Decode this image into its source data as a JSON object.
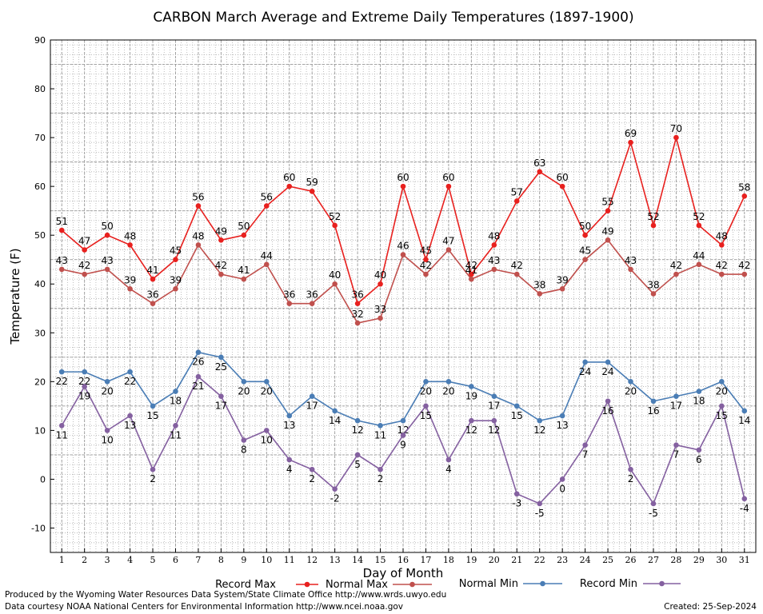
{
  "chart_data": {
    "type": "line",
    "title": "CARBON March Average and Extreme Daily Temperatures (1897-1900)",
    "xlabel": "Day of Month",
    "ylabel": "Temperature (F)",
    "x": [
      1,
      2,
      3,
      4,
      5,
      6,
      7,
      8,
      9,
      10,
      11,
      12,
      13,
      14,
      15,
      16,
      17,
      18,
      19,
      20,
      21,
      22,
      23,
      24,
      25,
      26,
      27,
      28,
      29,
      30,
      31
    ],
    "xlim": [
      0.5,
      31.5
    ],
    "ylim": [
      -15,
      90
    ],
    "y_ticks": [
      -10,
      0,
      10,
      20,
      30,
      40,
      50,
      60,
      70,
      80,
      90
    ],
    "grid": true,
    "legend_position": "bottom",
    "series": [
      {
        "name": "Record Max",
        "color": "#e8201e",
        "label_side": "above",
        "values": [
          51,
          47,
          50,
          48,
          41,
          45,
          56,
          49,
          50,
          56,
          60,
          59,
          52,
          36,
          40,
          60,
          45,
          60,
          42,
          48,
          57,
          63,
          60,
          50,
          55,
          69,
          52,
          70,
          52,
          48,
          58
        ]
      },
      {
        "name": "Normal Max",
        "color": "#c0504d",
        "label_side": "above",
        "values": [
          43,
          42,
          43,
          39,
          36,
          39,
          48,
          42,
          41,
          44,
          36,
          36,
          40,
          32,
          33,
          46,
          42,
          47,
          41,
          43,
          42,
          38,
          39,
          45,
          49,
          43,
          38,
          42,
          44,
          42,
          42
        ]
      },
      {
        "name": "Normal Min",
        "color": "#4a7db5",
        "label_side": "below",
        "values": [
          22,
          22,
          20,
          22,
          15,
          18,
          26,
          25,
          20,
          20,
          13,
          17,
          14,
          12,
          11,
          12,
          20,
          20,
          19,
          17,
          15,
          12,
          13,
          24,
          24,
          20,
          16,
          17,
          18,
          20,
          14
        ]
      },
      {
        "name": "Record Min",
        "color": "#8460a0",
        "label_side": "below",
        "values": [
          11,
          19,
          10,
          13,
          2,
          11,
          21,
          17,
          8,
          10,
          4,
          2,
          -2,
          5,
          2,
          9,
          15,
          4,
          12,
          12,
          -3,
          -5,
          0,
          7,
          16,
          2,
          -5,
          7,
          6,
          15,
          -4
        ]
      }
    ]
  },
  "footer": {
    "produced_by": "Produced by the Wyoming Water Resources Data System/State Climate Office http://www.wrds.uwyo.edu",
    "courtesy": "Data courtesy NOAA National Centers for Environmental Information http://www.ncei.noaa.gov",
    "created": "Created:  25-Sep-2024"
  }
}
